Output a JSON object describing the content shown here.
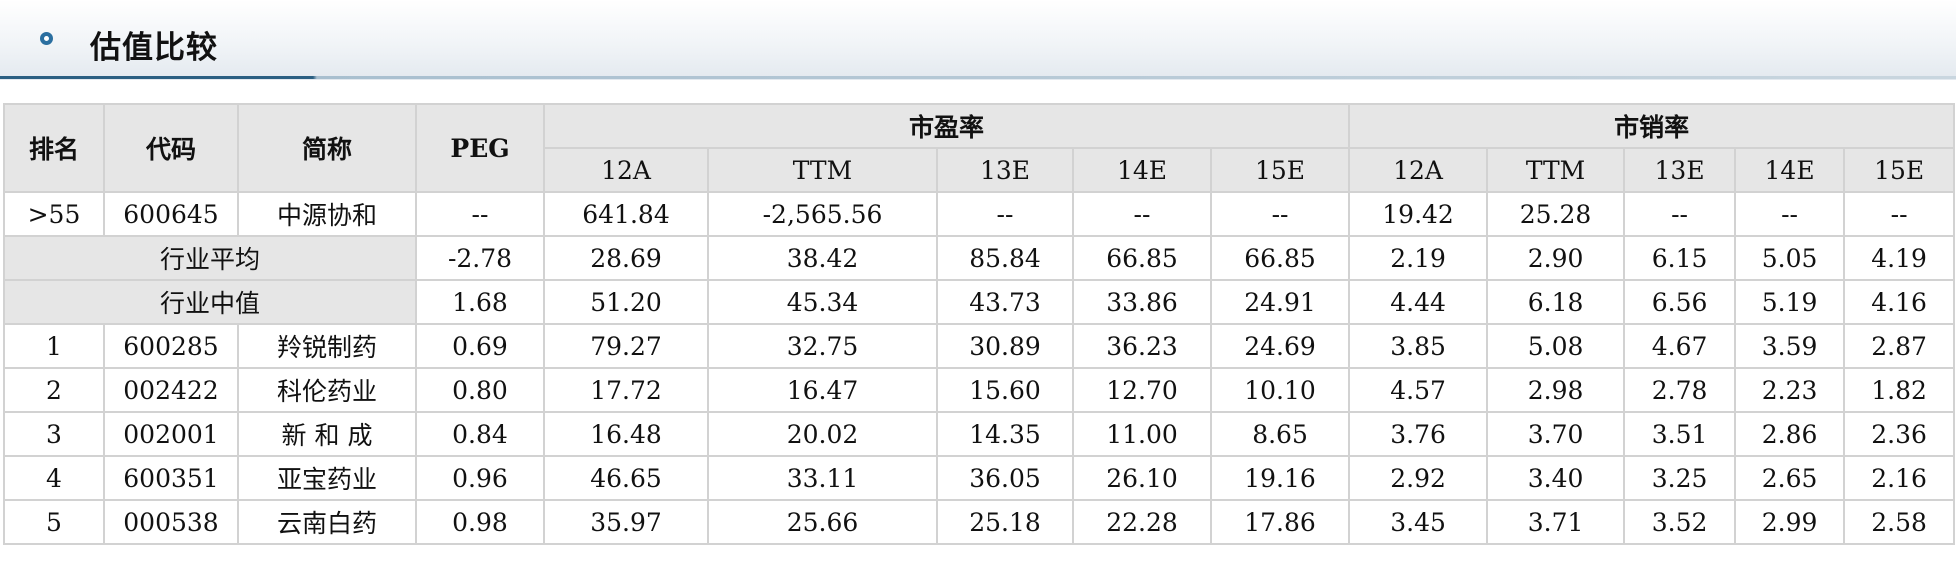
{
  "panel": {
    "title": "估值比较",
    "icon": "circle-bullet-icon"
  },
  "table": {
    "headers": {
      "rank": "排名",
      "code": "代码",
      "name": "简称",
      "peg": "PEG",
      "pe_group": "市盈率",
      "ps_group": "市销率",
      "sub": [
        "12A",
        "TTM",
        "13E",
        "14E",
        "15E"
      ]
    },
    "company": {
      "rank": ">55",
      "code": "600645",
      "name": "中源协和",
      "peg": "--",
      "pe": [
        "641.84",
        "-2,565.56",
        "--",
        "--",
        "--"
      ],
      "ps": [
        "19.42",
        "25.28",
        "--",
        "--",
        "--"
      ]
    },
    "industry_avg": {
      "label": "行业平均",
      "peg": "-2.78",
      "pe": [
        "28.69",
        "38.42",
        "85.84",
        "66.85",
        "66.85"
      ],
      "ps": [
        "2.19",
        "2.90",
        "6.15",
        "5.05",
        "4.19"
      ]
    },
    "industry_median": {
      "label": "行业中值",
      "peg": "1.68",
      "pe": [
        "51.20",
        "45.34",
        "43.73",
        "33.86",
        "24.91"
      ],
      "ps": [
        "4.44",
        "6.18",
        "6.56",
        "5.19",
        "4.16"
      ]
    },
    "rows": [
      {
        "rank": "1",
        "code": "600285",
        "name": "羚锐制药",
        "peg": "0.69",
        "pe": [
          "79.27",
          "32.75",
          "30.89",
          "36.23",
          "24.69"
        ],
        "ps": [
          "3.85",
          "5.08",
          "4.67",
          "3.59",
          "2.87"
        ]
      },
      {
        "rank": "2",
        "code": "002422",
        "name": "科伦药业",
        "peg": "0.80",
        "pe": [
          "17.72",
          "16.47",
          "15.60",
          "12.70",
          "10.10"
        ],
        "ps": [
          "4.57",
          "2.98",
          "2.78",
          "2.23",
          "1.82"
        ]
      },
      {
        "rank": "3",
        "code": "002001",
        "name": "新 和 成",
        "peg": "0.84",
        "pe": [
          "16.48",
          "20.02",
          "14.35",
          "11.00",
          "8.65"
        ],
        "ps": [
          "3.76",
          "3.70",
          "3.51",
          "2.86",
          "2.36"
        ]
      },
      {
        "rank": "4",
        "code": "600351",
        "name": "亚宝药业",
        "peg": "0.96",
        "pe": [
          "46.65",
          "33.11",
          "36.05",
          "26.10",
          "19.16"
        ],
        "ps": [
          "2.92",
          "3.40",
          "3.25",
          "2.65",
          "2.16"
        ]
      },
      {
        "rank": "5",
        "code": "000538",
        "name": "云南白药",
        "peg": "0.98",
        "pe": [
          "35.97",
          "25.66",
          "25.18",
          "22.28",
          "17.86"
        ],
        "ps": [
          "3.45",
          "3.71",
          "3.52",
          "2.99",
          "2.58"
        ]
      }
    ]
  },
  "colors": {
    "header_gradient": "#e3e9ef",
    "accent_line": "#2a5f82",
    "icon_ring": "#2b6fa0",
    "table_header_bg": "#e6e6e6",
    "table_border": "#d2d2d2"
  }
}
